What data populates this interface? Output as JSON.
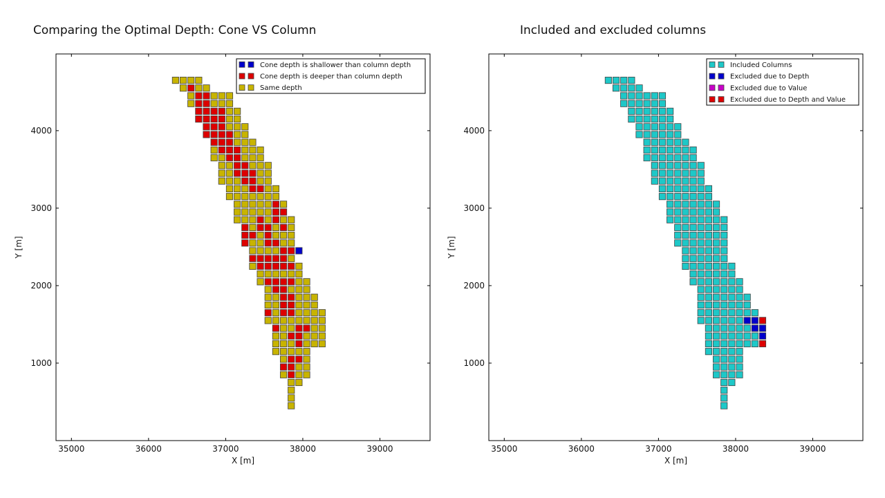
{
  "chart_data": [
    {
      "type": "scatter",
      "title": "Comparing the Optimal Depth: Cone VS Column",
      "xlabel": "X [m]",
      "ylabel": "Y [m]",
      "xlim": [
        34800,
        39650
      ],
      "ylim": [
        0,
        4990
      ],
      "xticks": [
        35000,
        36000,
        37000,
        38000,
        39000
      ],
      "yticks": [
        1000,
        2000,
        3000,
        4000
      ],
      "marker": "square",
      "legend_position": "top-right",
      "series": [
        {
          "name": "Cone depth is shallower than column depth",
          "color": "#0000cc",
          "points": [
            [
              37950,
              2450
            ]
          ]
        },
        {
          "name": "Cone depth is deeper than column depth",
          "color": "#dd0000",
          "points": [
            [
              36550,
              4550
            ],
            [
              36650,
              4450
            ],
            [
              36750,
              4450
            ],
            [
              36650,
              4350
            ],
            [
              36750,
              4350
            ],
            [
              36650,
              4250
            ],
            [
              36750,
              4250
            ],
            [
              36850,
              4250
            ],
            [
              36950,
              4250
            ],
            [
              36650,
              4150
            ],
            [
              36750,
              4150
            ],
            [
              36850,
              4150
            ],
            [
              36950,
              4150
            ],
            [
              36750,
              4050
            ],
            [
              36850,
              4050
            ],
            [
              36950,
              4050
            ],
            [
              36750,
              3950
            ],
            [
              36850,
              3950
            ],
            [
              36950,
              3950
            ],
            [
              37050,
              3950
            ],
            [
              36850,
              3850
            ],
            [
              36950,
              3850
            ],
            [
              37050,
              3850
            ],
            [
              36950,
              3750
            ],
            [
              37050,
              3750
            ],
            [
              37150,
              3750
            ],
            [
              37050,
              3650
            ],
            [
              37150,
              3650
            ],
            [
              37150,
              3550
            ],
            [
              37250,
              3550
            ],
            [
              37150,
              3450
            ],
            [
              37250,
              3450
            ],
            [
              37350,
              3450
            ],
            [
              37250,
              3350
            ],
            [
              37350,
              3350
            ],
            [
              37350,
              3250
            ],
            [
              37450,
              3250
            ],
            [
              37650,
              3050
            ],
            [
              37650,
              2950
            ],
            [
              37750,
              2950
            ],
            [
              37450,
              2850
            ],
            [
              37650,
              2850
            ],
            [
              37250,
              2750
            ],
            [
              37450,
              2750
            ],
            [
              37550,
              2750
            ],
            [
              37750,
              2750
            ],
            [
              37250,
              2650
            ],
            [
              37350,
              2650
            ],
            [
              37550,
              2650
            ],
            [
              37250,
              2550
            ],
            [
              37550,
              2550
            ],
            [
              37650,
              2550
            ],
            [
              37750,
              2450
            ],
            [
              37850,
              2450
            ],
            [
              37350,
              2350
            ],
            [
              37450,
              2350
            ],
            [
              37550,
              2350
            ],
            [
              37650,
              2350
            ],
            [
              37750,
              2350
            ],
            [
              37450,
              2250
            ],
            [
              37550,
              2250
            ],
            [
              37650,
              2250
            ],
            [
              37750,
              2250
            ],
            [
              37850,
              2250
            ],
            [
              37550,
              2050
            ],
            [
              37650,
              2050
            ],
            [
              37750,
              2050
            ],
            [
              37850,
              2050
            ],
            [
              37650,
              1950
            ],
            [
              37750,
              1950
            ],
            [
              37750,
              1850
            ],
            [
              37850,
              1850
            ],
            [
              37750,
              1750
            ],
            [
              37850,
              1750
            ],
            [
              37550,
              1650
            ],
            [
              37750,
              1650
            ],
            [
              37850,
              1650
            ],
            [
              37650,
              1450
            ],
            [
              37950,
              1450
            ],
            [
              38050,
              1450
            ],
            [
              37850,
              1350
            ],
            [
              37950,
              1350
            ],
            [
              37950,
              1250
            ],
            [
              37850,
              1050
            ],
            [
              37950,
              1050
            ],
            [
              37750,
              950
            ],
            [
              37850,
              950
            ],
            [
              37850,
              850
            ]
          ]
        },
        {
          "name": "Same depth",
          "color": "#c8b400",
          "points": []
        }
      ]
    },
    {
      "type": "scatter",
      "title": "Included and excluded columns",
      "xlabel": "X [m]",
      "ylabel": "Y [m]",
      "xlim": [
        34800,
        39650
      ],
      "ylim": [
        0,
        4990
      ],
      "xticks": [
        35000,
        36000,
        37000,
        38000,
        39000
      ],
      "yticks": [
        1000,
        2000,
        3000,
        4000
      ],
      "marker": "square",
      "legend_position": "top-right",
      "series": [
        {
          "name": "Included Columns",
          "color": "#1ec8c8",
          "points": []
        },
        {
          "name": "Excluded due to Depth",
          "color": "#0000cc",
          "points": [
            [
              38150,
              1550
            ],
            [
              38250,
              1550
            ],
            [
              38250,
              1450
            ],
            [
              38350,
              1450
            ],
            [
              38350,
              1350
            ]
          ]
        },
        {
          "name": "Excluded due to Value",
          "color": "#c800c8",
          "points": []
        },
        {
          "name": "Excluded due to Depth and Value",
          "color": "#dd0000",
          "points": [
            [
              38350,
              1550
            ],
            [
              38350,
              1250
            ]
          ]
        }
      ]
    }
  ],
  "grid_rows": [
    {
      "y": 4650,
      "x_min": 36350,
      "x_max": 36650
    },
    {
      "y": 4550,
      "x_min": 36450,
      "x_max": 36750
    },
    {
      "y": 4450,
      "x_min": 36550,
      "x_max": 37050
    },
    {
      "y": 4350,
      "x_min": 36550,
      "x_max": 37050
    },
    {
      "y": 4250,
      "x_min": 36650,
      "x_max": 37150
    },
    {
      "y": 4150,
      "x_min": 36650,
      "x_max": 37150
    },
    {
      "y": 4050,
      "x_min": 36750,
      "x_max": 37250
    },
    {
      "y": 3950,
      "x_min": 36750,
      "x_max": 37250
    },
    {
      "y": 3850,
      "x_min": 36850,
      "x_max": 37350
    },
    {
      "y": 3750,
      "x_min": 36850,
      "x_max": 37450
    },
    {
      "y": 3650,
      "x_min": 36850,
      "x_max": 37450
    },
    {
      "y": 3550,
      "x_min": 36950,
      "x_max": 37550
    },
    {
      "y": 3450,
      "x_min": 36950,
      "x_max": 37550
    },
    {
      "y": 3350,
      "x_min": 36950,
      "x_max": 37550
    },
    {
      "y": 3250,
      "x_min": 37050,
      "x_max": 37650
    },
    {
      "y": 3150,
      "x_min": 37050,
      "x_max": 37650
    },
    {
      "y": 3050,
      "x_min": 37150,
      "x_max": 37750
    },
    {
      "y": 2950,
      "x_min": 37150,
      "x_max": 37750
    },
    {
      "y": 2850,
      "x_min": 37150,
      "x_max": 37850
    },
    {
      "y": 2750,
      "x_min": 37250,
      "x_max": 37850
    },
    {
      "y": 2650,
      "x_min": 37250,
      "x_max": 37850
    },
    {
      "y": 2550,
      "x_min": 37250,
      "x_max": 37850
    },
    {
      "y": 2450,
      "x_min": 37350,
      "x_max": 37850
    },
    {
      "y": 2350,
      "x_min": 37350,
      "x_max": 37850
    },
    {
      "y": 2250,
      "x_min": 37350,
      "x_max": 37950
    },
    {
      "y": 2150,
      "x_min": 37450,
      "x_max": 37950
    },
    {
      "y": 2050,
      "x_min": 37450,
      "x_max": 38050
    },
    {
      "y": 1950,
      "x_min": 37550,
      "x_max": 38050
    },
    {
      "y": 1850,
      "x_min": 37550,
      "x_max": 38150
    },
    {
      "y": 1750,
      "x_min": 37550,
      "x_max": 38150
    },
    {
      "y": 1650,
      "x_min": 37550,
      "x_max": 38250
    },
    {
      "y": 1550,
      "x_min": 37550,
      "x_max": 38250
    },
    {
      "y": 1450,
      "x_min": 37650,
      "x_max": 38250
    },
    {
      "y": 1350,
      "x_min": 37650,
      "x_max": 38250
    },
    {
      "y": 1250,
      "x_min": 37650,
      "x_max": 38250
    },
    {
      "y": 1150,
      "x_min": 37650,
      "x_max": 38050
    },
    {
      "y": 1050,
      "x_min": 37750,
      "x_max": 38050
    },
    {
      "y": 950,
      "x_min": 37750,
      "x_max": 38050
    },
    {
      "y": 850,
      "x_min": 37750,
      "x_max": 38050
    },
    {
      "y": 750,
      "x_min": 37850,
      "x_max": 37950
    },
    {
      "y": 650,
      "x_min": 37850,
      "x_max": 37850
    },
    {
      "y": 550,
      "x_min": 37850,
      "x_max": 37850
    },
    {
      "y": 450,
      "x_min": 37850,
      "x_max": 37850
    }
  ],
  "colors": {
    "same": "#c8b400",
    "included": "#1ec8c8",
    "edge": "#444444"
  }
}
